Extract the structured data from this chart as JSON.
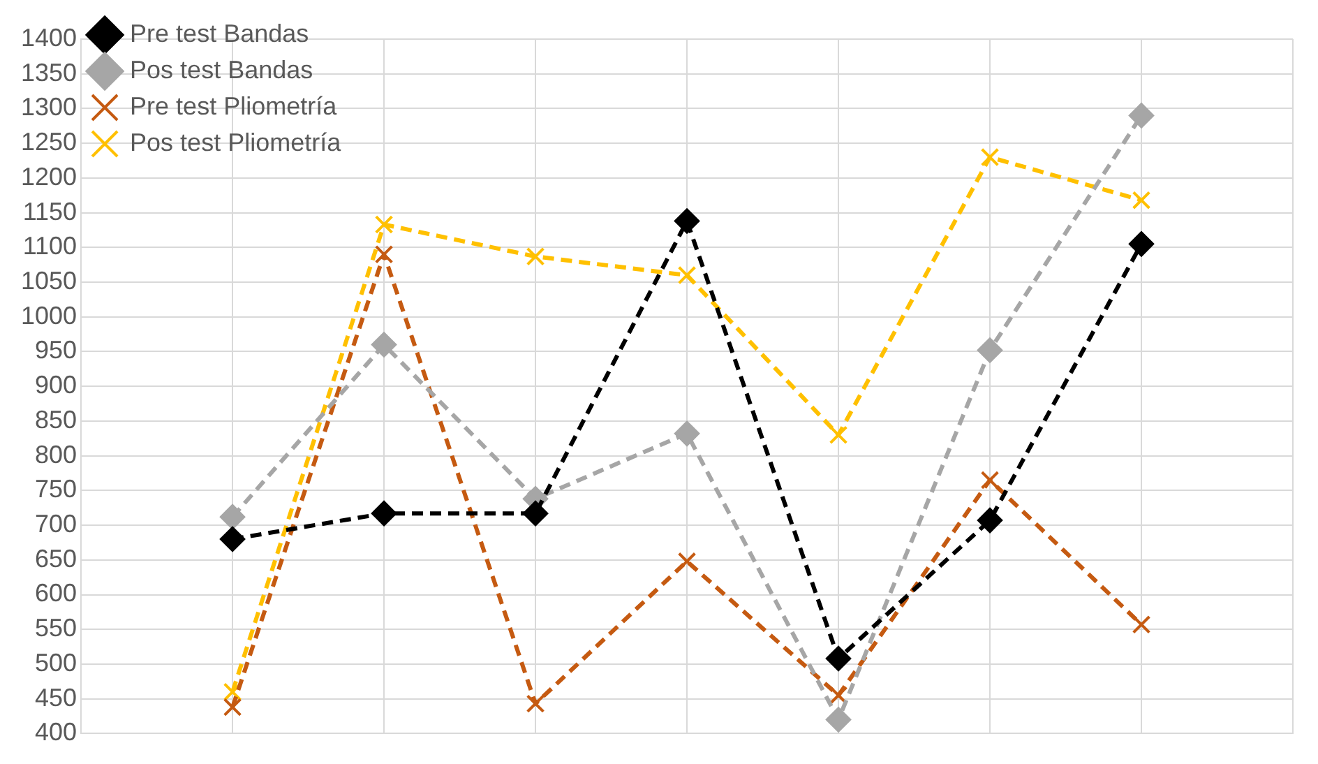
{
  "chart_data": {
    "type": "line",
    "categories": [
      null,
      null,
      null,
      null,
      null,
      null,
      null
    ],
    "series": [
      {
        "name": "Pre test Bandas",
        "color": "#000000",
        "marker": "diamond",
        "values": [
          680,
          717,
          717,
          1138,
          508,
          707,
          1105
        ]
      },
      {
        "name": "Pos test Bandas",
        "color": "#a6a6a6",
        "marker": "diamond",
        "values": [
          712,
          960,
          738,
          832,
          420,
          952,
          1290
        ]
      },
      {
        "name": "Pre test Pliometría",
        "color": "#c55a11",
        "marker": "cross",
        "values": [
          438,
          1090,
          443,
          648,
          455,
          765,
          557
        ]
      },
      {
        "name": "Pos test Pliometría",
        "color": "#ffc000",
        "marker": "cross",
        "values": [
          460,
          1133,
          1087,
          1060,
          830,
          1230,
          1168
        ]
      }
    ],
    "ylim": [
      400,
      1400
    ],
    "yticks": [
      400,
      450,
      500,
      550,
      600,
      650,
      700,
      750,
      800,
      850,
      900,
      950,
      1000,
      1050,
      1100,
      1150,
      1200,
      1250,
      1300,
      1350,
      1400
    ],
    "grid": true,
    "legend": "top left",
    "line_style": "dashed"
  }
}
